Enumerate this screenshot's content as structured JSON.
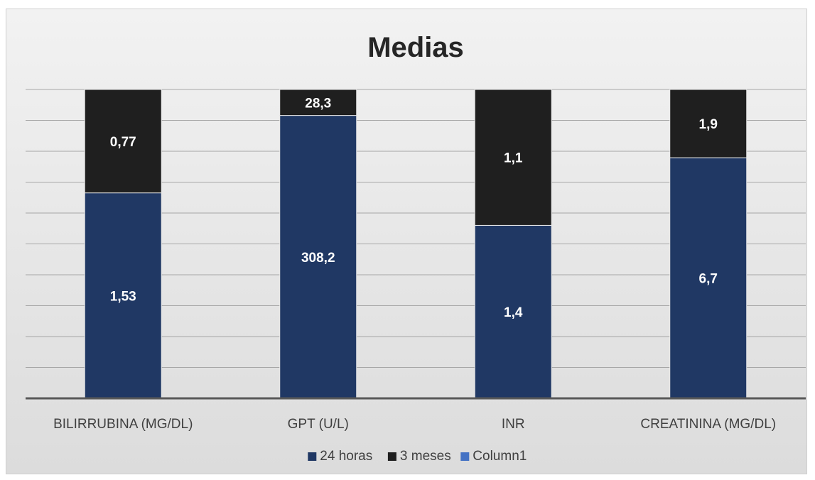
{
  "chart_data": {
    "type": "bar",
    "stacked": true,
    "percent_stacked": true,
    "title": "Medias",
    "categories": [
      "BILIRRUBINA (MG/DL)",
      "GPT (U/L)",
      "INR",
      "CREATININA (MG/DL)"
    ],
    "series": [
      {
        "name": "24 horas",
        "values": [
          1.53,
          308.2,
          1.4,
          6.7
        ],
        "labels": [
          "1,53",
          "308,2",
          "1,4",
          "6,7"
        ],
        "color": "#203864"
      },
      {
        "name": "3 meses",
        "values": [
          0.77,
          28.3,
          1.1,
          1.9
        ],
        "labels": [
          "0,77",
          "28,3",
          "1,1",
          "1,9"
        ],
        "color": "#1f1f1f"
      },
      {
        "name": "Column1",
        "values": [
          0,
          0,
          0,
          0
        ],
        "labels": [
          "",
          "",
          "",
          ""
        ],
        "color": "#4472c4"
      }
    ],
    "grid": true,
    "legend_position": "bottom"
  }
}
